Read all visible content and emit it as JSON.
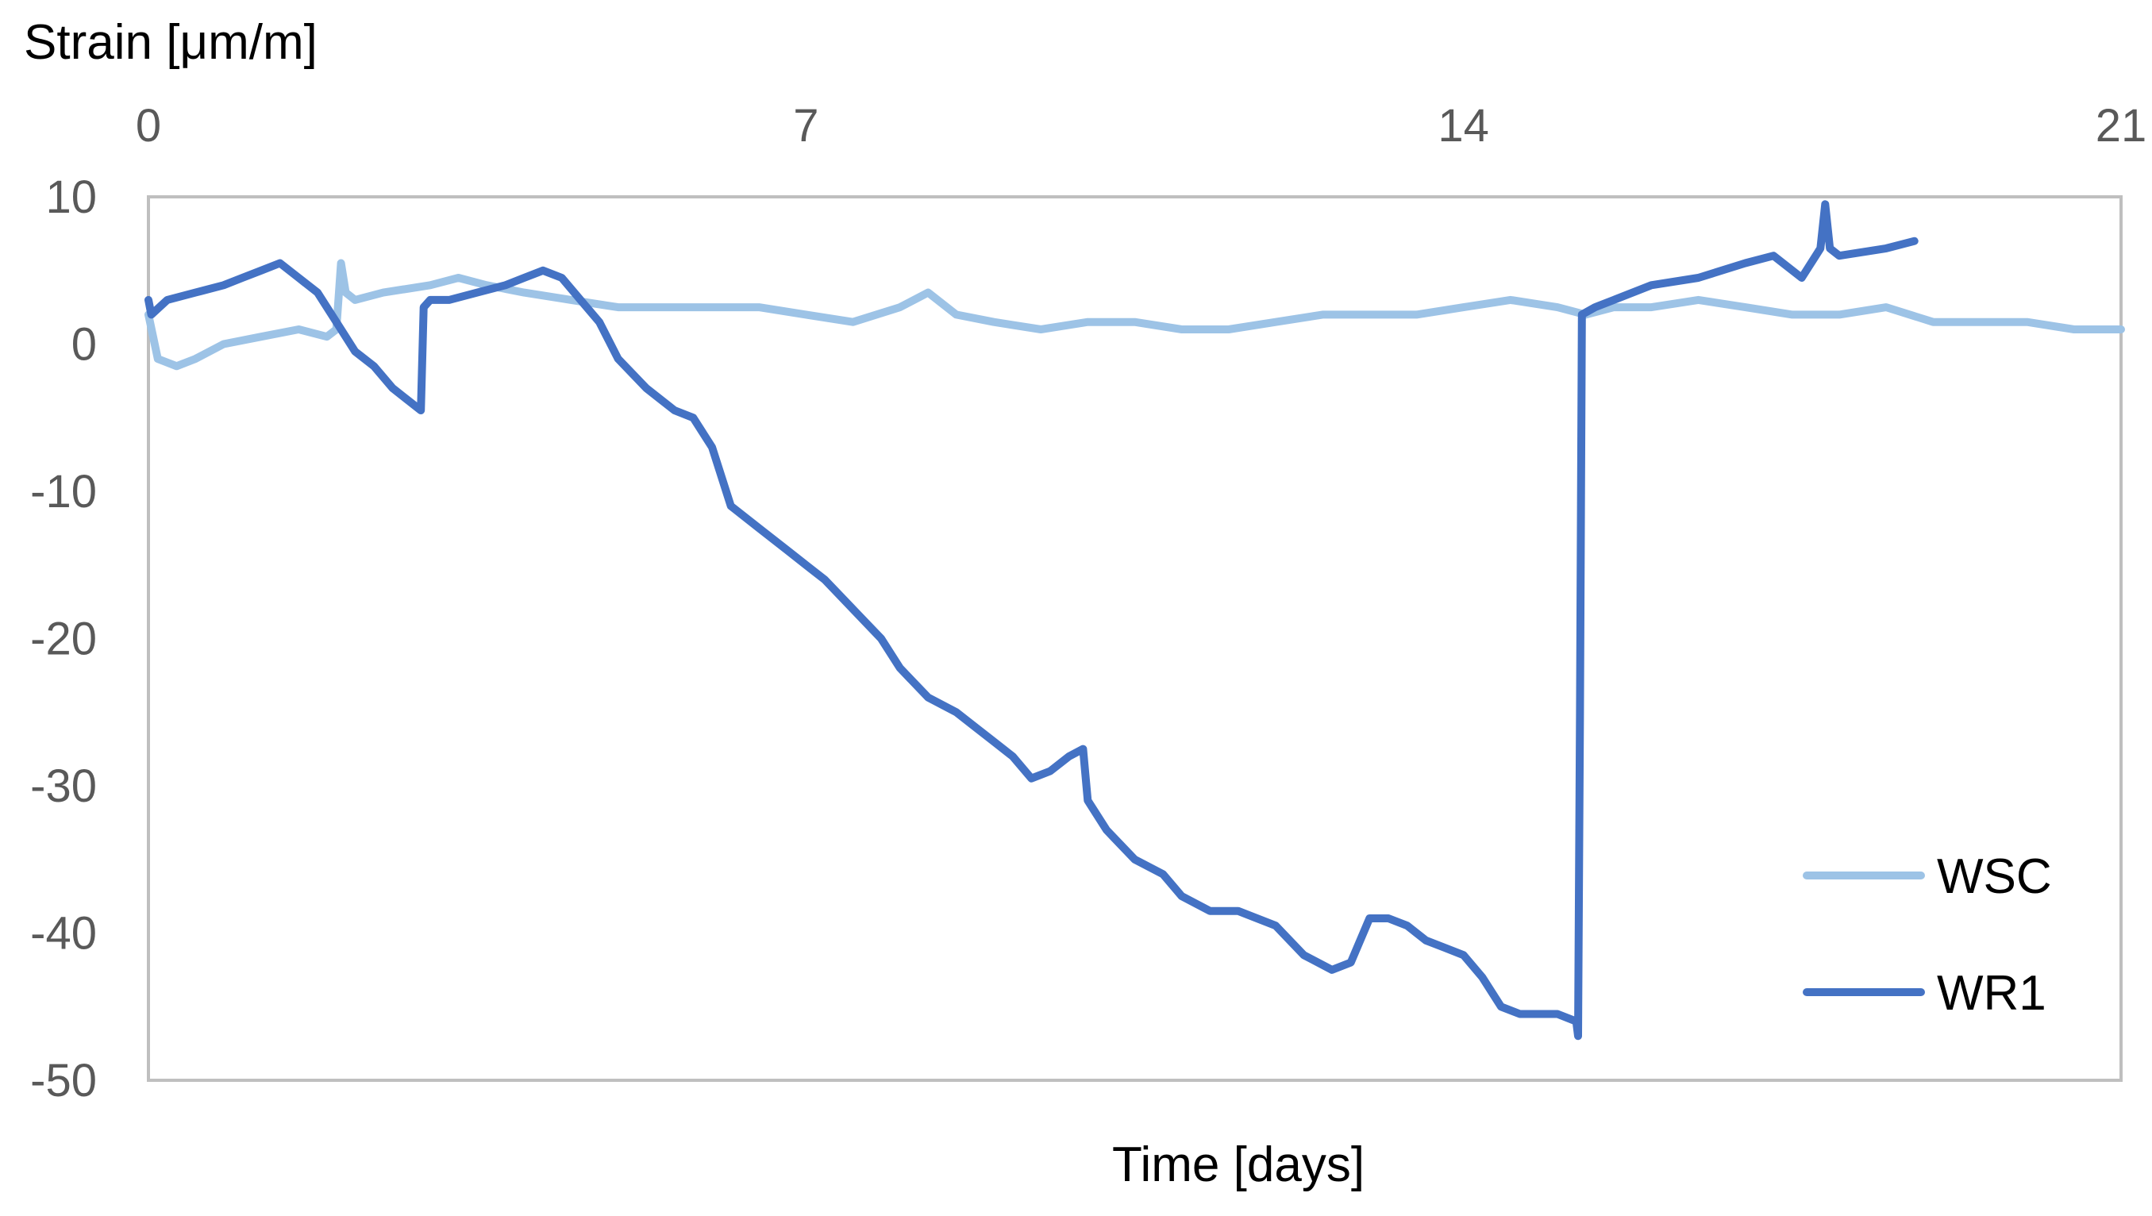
{
  "chart_data": {
    "type": "line",
    "title": "",
    "ylabel": "Strain [μm/m]",
    "xlabel": "Time [days]",
    "xlim": [
      0,
      21
    ],
    "ylim": [
      -50,
      10
    ],
    "x_ticks": [
      "0",
      "7",
      "14",
      "21"
    ],
    "y_ticks": [
      "10",
      "0",
      "-10",
      "-20",
      "-30",
      "-40",
      "-50"
    ],
    "grid": false,
    "legend_position": "right",
    "series": [
      {
        "name": "WSC",
        "color": "#9DC3E6",
        "x": [
          0.0,
          0.1,
          0.3,
          0.5,
          0.8,
          1.2,
          1.6,
          1.9,
          2.0,
          2.05,
          2.1,
          2.2,
          2.5,
          3.0,
          3.3,
          3.6,
          4.0,
          4.5,
          5.0,
          6.0,
          6.5,
          7.0,
          7.5,
          8.0,
          8.3,
          8.6,
          9.0,
          9.5,
          10.0,
          10.5,
          11.0,
          11.5,
          12.0,
          12.5,
          13.0,
          13.5,
          14.0,
          14.5,
          15.0,
          15.3,
          15.6,
          16.0,
          16.5,
          17.0,
          17.5,
          18.0,
          18.5,
          19.0,
          19.5,
          20.0,
          20.5,
          21.0
        ],
        "y": [
          2.0,
          -1.0,
          -1.5,
          -1.0,
          0.0,
          0.5,
          1.0,
          0.5,
          1.0,
          5.5,
          3.5,
          3.0,
          3.5,
          4.0,
          4.5,
          4.0,
          3.5,
          3.0,
          2.5,
          2.5,
          2.5,
          2.0,
          1.5,
          2.5,
          3.5,
          2.0,
          1.5,
          1.0,
          1.5,
          1.5,
          1.0,
          1.0,
          1.5,
          2.0,
          2.0,
          2.0,
          2.5,
          3.0,
          2.5,
          2.0,
          2.5,
          2.5,
          3.0,
          2.5,
          2.0,
          2.0,
          2.5,
          1.5,
          1.5,
          1.5,
          1.0,
          1.0
        ]
      },
      {
        "name": "WR1",
        "color": "#4472C4",
        "x": [
          0.0,
          0.03,
          0.2,
          0.5,
          0.8,
          1.0,
          1.2,
          1.4,
          1.6,
          1.8,
          2.0,
          2.2,
          2.4,
          2.6,
          2.8,
          2.9,
          2.93,
          3.0,
          3.2,
          3.5,
          3.8,
          4.0,
          4.2,
          4.4,
          4.6,
          4.8,
          5.0,
          5.3,
          5.6,
          5.8,
          6.0,
          6.2,
          6.5,
          6.8,
          7.0,
          7.2,
          7.5,
          7.8,
          8.0,
          8.3,
          8.6,
          8.8,
          9.0,
          9.2,
          9.4,
          9.6,
          9.8,
          9.95,
          10.0,
          10.2,
          10.5,
          10.8,
          11.0,
          11.3,
          11.6,
          12.0,
          12.3,
          12.6,
          12.8,
          13.0,
          13.2,
          13.4,
          13.6,
          13.8,
          14.0,
          14.2,
          14.4,
          14.6,
          14.8,
          15.0,
          15.2,
          15.22,
          15.24,
          15.26,
          15.4,
          15.6,
          16.0,
          16.5,
          17.0,
          17.3,
          17.6,
          17.8,
          17.85,
          17.9,
          18.0,
          18.5,
          18.8
        ],
        "y": [
          3.0,
          2.0,
          3.0,
          3.5,
          4.0,
          4.5,
          5.0,
          5.5,
          4.5,
          3.5,
          1.5,
          -0.5,
          -1.5,
          -3.0,
          -4.0,
          -4.5,
          2.5,
          3.0,
          3.0,
          3.5,
          4.0,
          4.5,
          5.0,
          4.5,
          3.0,
          1.5,
          -1.0,
          -3.0,
          -4.5,
          -5.0,
          -7.0,
          -11.0,
          -12.5,
          -14.0,
          -15.0,
          -16.0,
          -18.0,
          -20.0,
          -22.0,
          -24.0,
          -25.0,
          -26.0,
          -27.0,
          -28.0,
          -29.5,
          -29.0,
          -28.0,
          -27.5,
          -31.0,
          -33.0,
          -35.0,
          -36.0,
          -37.5,
          -38.5,
          -38.5,
          -39.5,
          -41.5,
          -42.5,
          -42.0,
          -39.0,
          -39.0,
          -39.5,
          -40.5,
          -41.0,
          -41.5,
          -43.0,
          -45.0,
          -45.5,
          -45.5,
          -45.5,
          -46.0,
          -47.0,
          -25.0,
          2.0,
          2.5,
          3.0,
          4.0,
          4.5,
          5.5,
          6.0,
          4.5,
          6.5,
          9.5,
          6.5,
          6.0,
          6.5,
          7.0
        ]
      }
    ]
  }
}
